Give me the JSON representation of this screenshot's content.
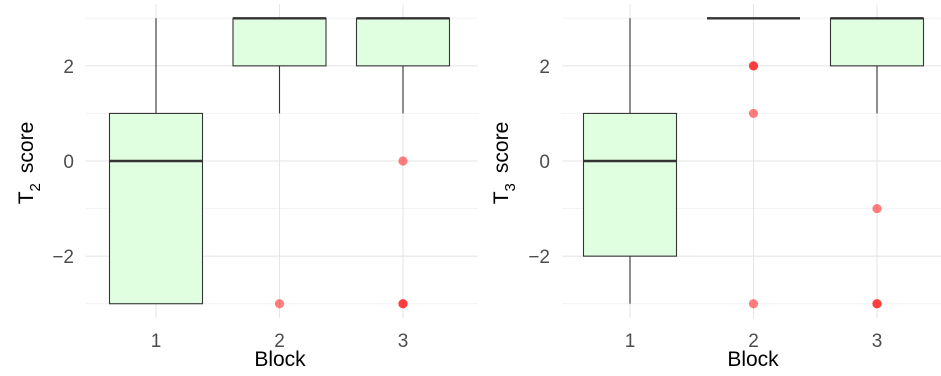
{
  "chart_data": [
    {
      "type": "boxplot",
      "xlabel": "Block",
      "ylabel": {
        "main": "T",
        "sub": "2",
        "rest": "score"
      },
      "categories": [
        "1",
        "2",
        "3"
      ],
      "ylim": [
        -3.3,
        3.3
      ],
      "yticks": [
        -2,
        0,
        2
      ],
      "grid": true,
      "boxes": [
        {
          "category": "1",
          "lower_whisker": -3,
          "q1": -3,
          "median": 0,
          "q3": 1,
          "upper_whisker": 3,
          "outliers": []
        },
        {
          "category": "2",
          "lower_whisker": 1,
          "q1": 2,
          "median": 3,
          "q3": 3,
          "upper_whisker": 3,
          "outliers": [
            -3
          ]
        },
        {
          "category": "3",
          "lower_whisker": 1,
          "q1": 2,
          "median": 3,
          "q3": 3,
          "upper_whisker": 3,
          "outliers": [
            0,
            -3,
            -3
          ]
        }
      ]
    },
    {
      "type": "boxplot",
      "xlabel": "Block",
      "ylabel": {
        "main": "T",
        "sub": "3",
        "rest": "score"
      },
      "categories": [
        "1",
        "2",
        "3"
      ],
      "ylim": [
        -3.3,
        3.3
      ],
      "yticks": [
        -2,
        0,
        2
      ],
      "grid": true,
      "boxes": [
        {
          "category": "1",
          "lower_whisker": -3,
          "q1": -2,
          "median": 0,
          "q3": 1,
          "upper_whisker": 3,
          "outliers": []
        },
        {
          "category": "2",
          "lower_whisker": 3,
          "q1": 3,
          "median": 3,
          "q3": 3,
          "upper_whisker": 3,
          "outliers": [
            2,
            2,
            1,
            -3
          ]
        },
        {
          "category": "3",
          "lower_whisker": 1,
          "q1": 2,
          "median": 3,
          "q3": 3,
          "upper_whisker": 3,
          "outliers": [
            -1,
            -3,
            -3
          ]
        }
      ]
    }
  ],
  "colors": {
    "box_fill": "#e0ffe0",
    "box_line": "#333333",
    "median_line": "#333333",
    "outlier": "#ff0000",
    "grid_major": "#e6e6e6",
    "grid_minor": "#f2f2f2",
    "tick_text": "#4d4d4d",
    "title_text": "#000000"
  }
}
